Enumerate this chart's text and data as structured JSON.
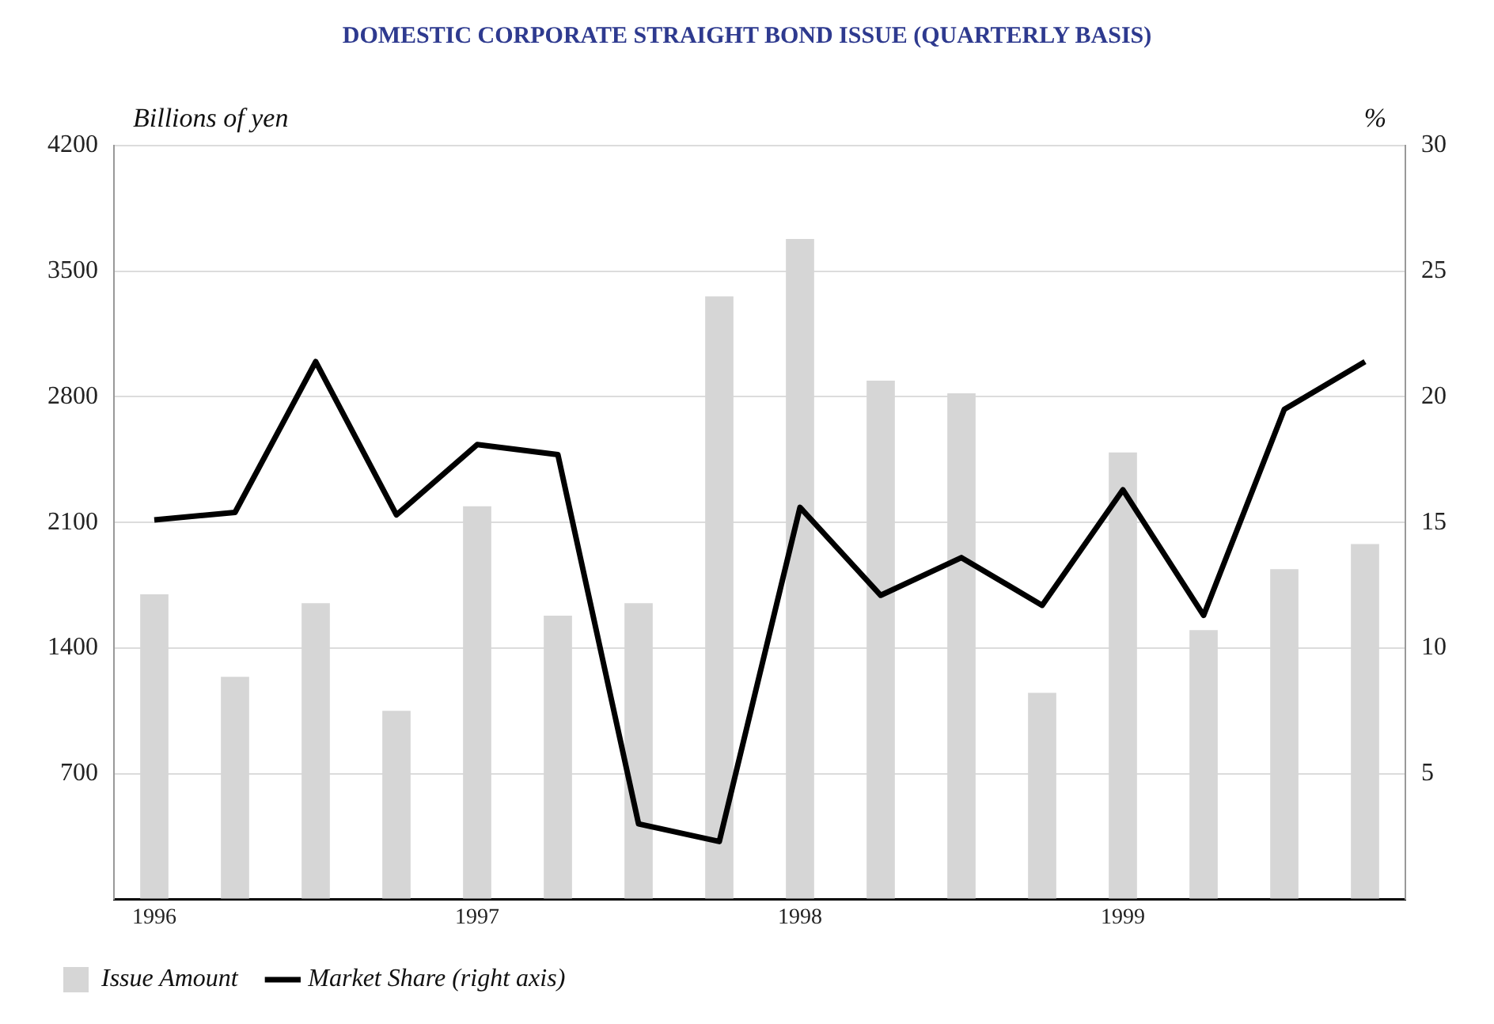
{
  "chart_data": {
    "type": "bar",
    "title": "DOMESTIC CORPORATE STRAIGHT BOND ISSUE (QUARTERLY BASIS)",
    "ylabel": "Billions of yen",
    "y2label": "%",
    "categories": [
      "1996",
      null,
      null,
      null,
      "1997",
      null,
      null,
      null,
      "1998",
      null,
      null,
      null,
      "1999",
      null,
      null,
      null
    ],
    "series": [
      {
        "name": "Issue Amount",
        "color": "#d6d6d6",
        "values": [
          1700,
          1240,
          1650,
          1050,
          2190,
          1580,
          1650,
          3360,
          3680,
          2890,
          2820,
          1150,
          2490,
          1500,
          1840,
          1980
        ]
      },
      {
        "name": "Market Share (right axis)",
        "type": "line",
        "axis": "y2",
        "color": "#000000",
        "values": [
          15.1,
          15.4,
          21.4,
          15.3,
          18.1,
          17.7,
          3.0,
          2.3,
          15.6,
          12.1,
          13.6,
          11.7,
          16.3,
          11.3,
          19.5,
          21.4
        ]
      }
    ],
    "ylim": [
      0,
      4200
    ],
    "yticks": [
      {
        "value": 0,
        "label": null
      },
      700,
      1400,
      2100,
      2800,
      3500,
      4200
    ],
    "y2lim": [
      0,
      30
    ],
    "y2ticks": [
      5,
      10,
      15,
      20,
      25,
      30
    ],
    "grid": "y",
    "legend": "bottom left",
    "marker": "none",
    "line_style": "solid"
  }
}
